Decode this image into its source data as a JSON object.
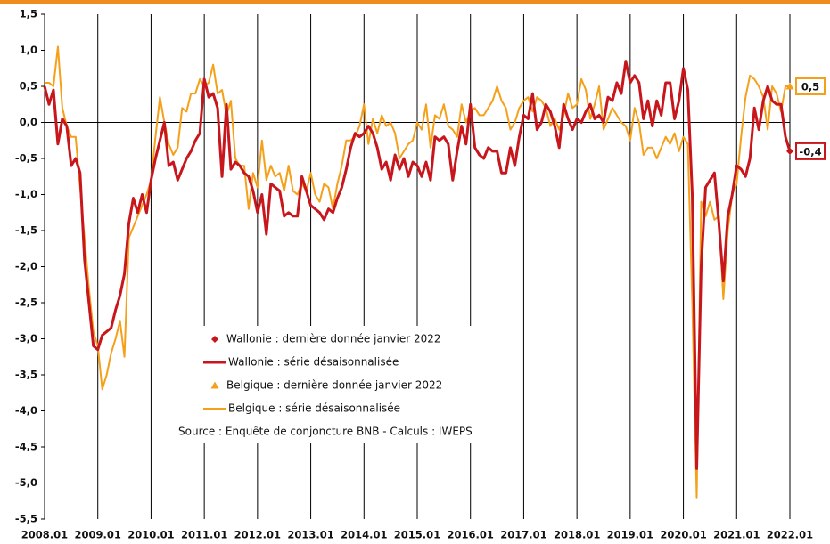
{
  "chart_data": {
    "type": "line",
    "categories": [
      "2008.01",
      null,
      null,
      null,
      null,
      null,
      null,
      null,
      null,
      null,
      null,
      null,
      "2009.01",
      null,
      null,
      null,
      null,
      null,
      null,
      null,
      null,
      null,
      null,
      null,
      "2010.01",
      null,
      null,
      null,
      null,
      null,
      null,
      null,
      null,
      null,
      null,
      null,
      "2011.01",
      null,
      null,
      null,
      null,
      null,
      null,
      null,
      null,
      null,
      null,
      null,
      "2012.01",
      null,
      null,
      null,
      null,
      null,
      null,
      null,
      null,
      null,
      null,
      null,
      "2013.01",
      null,
      null,
      null,
      null,
      null,
      null,
      null,
      null,
      null,
      null,
      null,
      "2014.01",
      null,
      null,
      null,
      null,
      null,
      null,
      null,
      null,
      null,
      null,
      null,
      "2015.01",
      null,
      null,
      null,
      null,
      null,
      null,
      null,
      null,
      null,
      null,
      null,
      "2016.01",
      null,
      null,
      null,
      null,
      null,
      null,
      null,
      null,
      null,
      null,
      null,
      "2017.01",
      null,
      null,
      null,
      null,
      null,
      null,
      null,
      null,
      null,
      null,
      null,
      "2018.01",
      null,
      null,
      null,
      null,
      null,
      null,
      null,
      null,
      null,
      null,
      null,
      "2019.01",
      null,
      null,
      null,
      null,
      null,
      null,
      null,
      null,
      null,
      null,
      null,
      "2020.01",
      null,
      null,
      null,
      null,
      null,
      null,
      null,
      null,
      null,
      null,
      null,
      "2021.01",
      null,
      null,
      null,
      null,
      null,
      null,
      null,
      null,
      null,
      null,
      null,
      "2022.01"
    ],
    "series": [
      {
        "name": "Wallonie : série désaisonnalisée",
        "color": "#c8161d",
        "values": [
          0.5,
          0.25,
          0.45,
          -0.3,
          0.05,
          -0.05,
          -0.6,
          -0.5,
          -0.7,
          -1.9,
          -2.5,
          -3.1,
          -3.15,
          -2.95,
          -2.9,
          -2.85,
          -2.6,
          -2.4,
          -2.1,
          -1.4,
          -1.05,
          -1.25,
          -1.0,
          -1.25,
          -0.8,
          -0.5,
          -0.25,
          0.0,
          -0.6,
          -0.55,
          -0.8,
          -0.65,
          -0.5,
          -0.4,
          -0.25,
          -0.15,
          0.6,
          0.35,
          0.4,
          0.2,
          -0.75,
          0.25,
          -0.65,
          -0.55,
          -0.6,
          -0.7,
          -0.75,
          -0.95,
          -1.25,
          -1.0,
          -1.55,
          -0.85,
          -0.9,
          -0.95,
          -1.3,
          -1.25,
          -1.3,
          -1.3,
          -0.75,
          -0.95,
          -1.15,
          -1.2,
          -1.25,
          -1.35,
          -1.2,
          -1.25,
          -1.05,
          -0.9,
          -0.65,
          -0.35,
          -0.15,
          -0.2,
          -0.15,
          -0.05,
          -0.15,
          -0.35,
          -0.65,
          -0.55,
          -0.8,
          -0.45,
          -0.65,
          -0.5,
          -0.75,
          -0.55,
          -0.6,
          -0.75,
          -0.55,
          -0.8,
          -0.2,
          -0.25,
          -0.2,
          -0.3,
          -0.8,
          -0.4,
          -0.05,
          -0.3,
          0.25,
          -0.35,
          -0.45,
          -0.5,
          -0.35,
          -0.4,
          -0.4,
          -0.7,
          -0.7,
          -0.35,
          -0.6,
          -0.2,
          0.1,
          0.05,
          0.4,
          -0.1,
          0.0,
          0.25,
          0.15,
          -0.05,
          -0.35,
          0.25,
          0.05,
          -0.1,
          0.05,
          0.0,
          0.15,
          0.25,
          0.05,
          0.1,
          0.0,
          0.35,
          0.3,
          0.55,
          0.4,
          0.85,
          0.55,
          0.65,
          0.55,
          0.05,
          0.3,
          -0.05,
          0.3,
          0.1,
          0.55,
          0.55,
          0.05,
          0.3,
          0.75,
          0.45,
          -1.0,
          -4.8,
          -2.0,
          -0.9,
          -0.8,
          -0.7,
          -1.4,
          -2.2,
          -1.3,
          -1.0,
          -0.6,
          -0.65,
          -0.75,
          -0.5,
          0.2,
          -0.1,
          0.3,
          0.5,
          0.3,
          0.25,
          0.25,
          -0.2,
          -0.4
        ]
      },
      {
        "name": "Belgique : série désaisonnalisée",
        "color": "#f5a01a",
        "values": [
          0.55,
          0.55,
          0.5,
          1.05,
          0.2,
          -0.05,
          -0.2,
          -0.2,
          -0.9,
          -1.6,
          -2.3,
          -2.9,
          -3.1,
          -3.7,
          -3.5,
          -3.2,
          -3.0,
          -2.75,
          -3.25,
          -1.6,
          -1.45,
          -1.3,
          -1.15,
          -1.0,
          -0.8,
          -0.2,
          0.35,
          0.0,
          -0.3,
          -0.45,
          -0.35,
          0.2,
          0.15,
          0.4,
          0.4,
          0.6,
          0.5,
          0.55,
          0.8,
          0.4,
          0.45,
          0.1,
          0.3,
          -0.5,
          -0.6,
          -0.6,
          -1.2,
          -0.7,
          -0.9,
          -0.25,
          -0.8,
          -0.6,
          -0.75,
          -0.7,
          -0.95,
          -0.6,
          -0.95,
          -1.0,
          -0.85,
          -0.95,
          -0.7,
          -1.0,
          -1.1,
          -0.85,
          -0.9,
          -1.2,
          -0.85,
          -0.6,
          -0.25,
          -0.25,
          -0.2,
          -0.05,
          0.25,
          -0.3,
          0.05,
          -0.15,
          0.1,
          -0.05,
          0.0,
          -0.15,
          -0.5,
          -0.4,
          -0.3,
          -0.25,
          0.0,
          -0.1,
          0.25,
          -0.35,
          0.1,
          0.05,
          0.25,
          -0.05,
          -0.1,
          -0.2,
          0.25,
          0.0,
          0.15,
          0.2,
          0.1,
          0.1,
          0.2,
          0.3,
          0.5,
          0.3,
          0.2,
          -0.1,
          0.0,
          0.2,
          0.3,
          0.35,
          0.15,
          0.35,
          0.3,
          0.2,
          -0.05,
          0.05,
          -0.1,
          0.1,
          0.4,
          0.2,
          0.25,
          0.6,
          0.45,
          0.05,
          0.25,
          0.5,
          -0.1,
          0.05,
          0.2,
          0.1,
          0.0,
          -0.05,
          -0.25,
          0.2,
          0.0,
          -0.45,
          -0.35,
          -0.35,
          -0.5,
          -0.35,
          -0.2,
          -0.3,
          -0.15,
          -0.4,
          -0.2,
          -0.3,
          -2.5,
          -5.2,
          -1.1,
          -1.3,
          -1.1,
          -1.35,
          -1.3,
          -2.45,
          -1.5,
          -1.0,
          -0.85,
          -0.2,
          0.35,
          0.65,
          0.6,
          0.5,
          0.35,
          -0.1,
          0.5,
          0.4,
          0.15,
          0.5,
          0.5
        ]
      }
    ],
    "markers": [
      {
        "name": "Wallonie : dernière donnée janvier 2022",
        "color": "#c8161d",
        "shape": "diamond",
        "value": -0.4,
        "value_label": "-0,4"
      },
      {
        "name": "Belgique : dernière donnée janvier 2022",
        "color": "#f5a01a",
        "shape": "triangle",
        "value": 0.5,
        "value_label": "0,5"
      }
    ],
    "source": "Source : Enquête de conjoncture BNB - Calculs : IWEPS",
    "ylim": [
      -5.5,
      1.5
    ],
    "yticks": [
      {
        "value": 1.5,
        "label": "1,5"
      },
      {
        "value": 1,
        "label": "1,0"
      },
      {
        "value": 0.5,
        "label": "0,5"
      },
      {
        "value": 0,
        "label": "0,0"
      },
      {
        "value": -0.5,
        "label": "-0,5"
      },
      {
        "value": -1,
        "label": "-1,0"
      },
      {
        "value": -1.5,
        "label": "-1,5"
      },
      {
        "value": -2,
        "label": "-2,0"
      },
      {
        "value": -2.5,
        "label": "-2,5"
      },
      {
        "value": -3,
        "label": "-3,0"
      },
      {
        "value": -3.5,
        "label": "-3,5"
      },
      {
        "value": -4,
        "label": "-4,0"
      },
      {
        "value": -4.5,
        "label": "-4,5"
      },
      {
        "value": -5,
        "label": "-5,0"
      },
      {
        "value": -5.5,
        "label": "-5,5"
      }
    ],
    "grid": true
  }
}
